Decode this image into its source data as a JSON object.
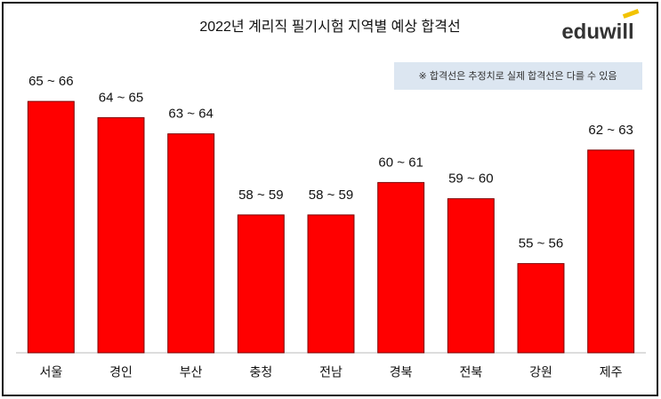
{
  "chart_data": {
    "type": "bar",
    "title": "2022년 계리직 필기시험 지역별 예상 합격선",
    "logo": "eduwill",
    "note": "※ 합격선은 추정치로 실제 합격선은 다를 수 있음",
    "categories": [
      "서울",
      "경인",
      "부산",
      "충청",
      "전남",
      "경북",
      "전북",
      "강원",
      "제주"
    ],
    "values": [
      65.5,
      64.5,
      63.5,
      58.5,
      58.5,
      60.5,
      59.5,
      55.5,
      62.5
    ],
    "value_labels": [
      "65 ~ 66",
      "64 ~ 65",
      "63 ~ 64",
      "58 ~ 59",
      "58 ~ 59",
      "60 ~ 61",
      "59 ~ 60",
      "55 ~ 56",
      "62 ~ 63"
    ],
    "color": "#ff0000",
    "ylim": [
      50,
      66
    ]
  }
}
